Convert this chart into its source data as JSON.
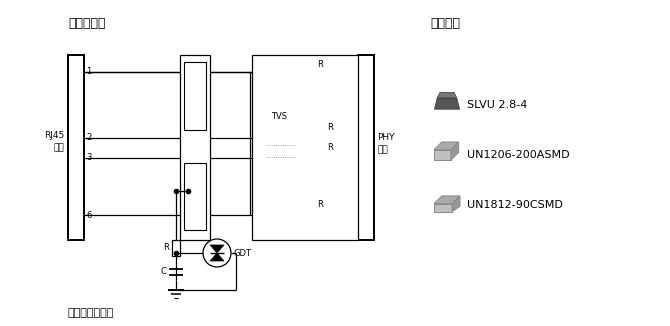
{
  "bg_color": "#ffffff",
  "title_left": "防护电路图",
  "title_right": "产品外观",
  "bottom_text": "使用硕凯器件：",
  "product_labels": [
    "SLVU 2.8-4",
    "UN1206-200ASMD",
    "UN1812-90CSMD"
  ],
  "rj45_label1": "RJ45",
  "rj45_label2": "接口",
  "phy_label1": "PHY",
  "phy_label2": "芯片",
  "tvs_label": "TVS",
  "gdt_label": "GDT",
  "r_label": "R",
  "c_label": "C",
  "text_color": "#000000",
  "line_color": "#000000"
}
